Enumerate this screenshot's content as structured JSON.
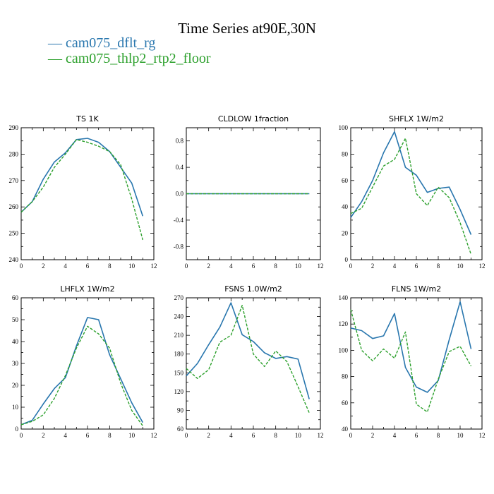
{
  "title": "Time Series at90E,30N",
  "legend": [
    {
      "label": "cam075_dflt_rg",
      "color": "#2876ae"
    },
    {
      "label": "cam075_thlp2_rtp2_floor",
      "color": "#2ca02c"
    }
  ],
  "chart_data": [
    {
      "type": "line",
      "title": "TS   1K",
      "xlim": [
        0,
        12
      ],
      "ylim": [
        240,
        290
      ],
      "xticks": [
        0,
        2,
        4,
        6,
        8,
        10,
        12
      ],
      "yticks": [
        240,
        250,
        260,
        270,
        280,
        290
      ],
      "x": [
        0,
        1,
        2,
        3,
        4,
        5,
        6,
        7,
        8,
        9,
        10,
        11
      ],
      "series": [
        {
          "name": "cam075_dflt_rg",
          "values": [
            258,
            262,
            270.5,
            277,
            280.5,
            285.5,
            286,
            284.5,
            281,
            275,
            269,
            256.5
          ]
        },
        {
          "name": "cam075_thlp2_rtp2_floor",
          "values": [
            258,
            262,
            267.5,
            275,
            280,
            285.5,
            284.5,
            283,
            281,
            276,
            263,
            247.5
          ]
        }
      ]
    },
    {
      "type": "line",
      "title": "CLDLOW   1fraction",
      "xlim": [
        0,
        12
      ],
      "ylim": [
        -1,
        1
      ],
      "xticks": [
        0,
        2,
        4,
        6,
        8,
        10,
        12
      ],
      "yticks": [
        -0.8,
        -0.4,
        0.0,
        0.4,
        0.8
      ],
      "ytick_labels": [
        "-0.8",
        "-0.4",
        "0.0",
        "0.4",
        "0.8"
      ],
      "x": [
        0,
        1,
        2,
        3,
        4,
        5,
        6,
        7,
        8,
        9,
        10,
        11
      ],
      "series": [
        {
          "name": "cam075_dflt_rg",
          "values": [
            0,
            0,
            0,
            0,
            0,
            0,
            0,
            0,
            0,
            0,
            0,
            0
          ]
        },
        {
          "name": "cam075_thlp2_rtp2_floor",
          "values": [
            0,
            0,
            0,
            0,
            0,
            0,
            0,
            0,
            0,
            0,
            0,
            0
          ]
        }
      ]
    },
    {
      "type": "line",
      "title": "SHFLX   1W/m2",
      "xlim": [
        0,
        12
      ],
      "ylim": [
        0,
        100
      ],
      "xticks": [
        0,
        2,
        4,
        6,
        8,
        10,
        12
      ],
      "yticks": [
        0,
        20,
        40,
        60,
        80,
        100
      ],
      "x": [
        0,
        1,
        2,
        3,
        4,
        5,
        6,
        7,
        8,
        9,
        10,
        11
      ],
      "series": [
        {
          "name": "cam075_dflt_rg",
          "values": [
            32,
            44,
            60,
            81,
            97,
            70,
            64,
            51,
            54,
            55,
            38,
            19
          ]
        },
        {
          "name": "cam075_thlp2_rtp2_floor",
          "values": [
            35,
            39,
            55,
            71,
            76,
            92,
            50,
            41,
            55,
            47,
            28,
            4
          ]
        }
      ]
    },
    {
      "type": "line",
      "title": "LHFLX   1W/m2",
      "xlim": [
        0,
        12
      ],
      "ylim": [
        0,
        60
      ],
      "xticks": [
        0,
        2,
        4,
        6,
        8,
        10,
        12
      ],
      "yticks": [
        0,
        10,
        20,
        30,
        40,
        50,
        60
      ],
      "x": [
        0,
        1,
        2,
        3,
        4,
        5,
        6,
        7,
        8,
        9,
        10,
        11
      ],
      "series": [
        {
          "name": "cam075_dflt_rg",
          "values": [
            2,
            4,
            11.5,
            18.5,
            23.5,
            38,
            51,
            50,
            34,
            23,
            12,
            3
          ]
        },
        {
          "name": "cam075_thlp2_rtp2_floor",
          "values": [
            2,
            3.5,
            6.5,
            14,
            24.5,
            37,
            47,
            43.5,
            37,
            21,
            8.5,
            1.5
          ]
        }
      ]
    },
    {
      "type": "line",
      "title": "FSNS   1.0W/m2",
      "xlim": [
        0,
        12
      ],
      "ylim": [
        60,
        270
      ],
      "xticks": [
        0,
        2,
        4,
        6,
        8,
        10,
        12
      ],
      "yticks": [
        60,
        90,
        120,
        150,
        180,
        210,
        240,
        270
      ],
      "x": [
        0,
        1,
        2,
        3,
        4,
        5,
        6,
        7,
        8,
        9,
        10,
        11
      ],
      "series": [
        {
          "name": "cam075_dflt_rg",
          "values": [
            145,
            165,
            195,
            223,
            262,
            211,
            200,
            182,
            173,
            176,
            172,
            108
          ]
        },
        {
          "name": "cam075_thlp2_rtp2_floor",
          "values": [
            157,
            141,
            155,
            199,
            210,
            258,
            180,
            160,
            185,
            168,
            128,
            86
          ]
        }
      ]
    },
    {
      "type": "line",
      "title": "FLNS   1W/m2",
      "xlim": [
        0,
        12
      ],
      "ylim": [
        40,
        140
      ],
      "xticks": [
        0,
        2,
        4,
        6,
        8,
        10,
        12
      ],
      "yticks": [
        40,
        60,
        80,
        100,
        120,
        140
      ],
      "x": [
        0,
        1,
        2,
        3,
        4,
        5,
        6,
        7,
        8,
        9,
        10,
        11
      ],
      "series": [
        {
          "name": "cam075_dflt_rg",
          "values": [
            117,
            115,
            109,
            111,
            128,
            87,
            72,
            68,
            77,
            108,
            137,
            101
          ]
        },
        {
          "name": "cam075_thlp2_rtp2_floor",
          "values": [
            131,
            100,
            92,
            101,
            94,
            114,
            59,
            53,
            78,
            99,
            103,
            88
          ]
        }
      ]
    }
  ]
}
